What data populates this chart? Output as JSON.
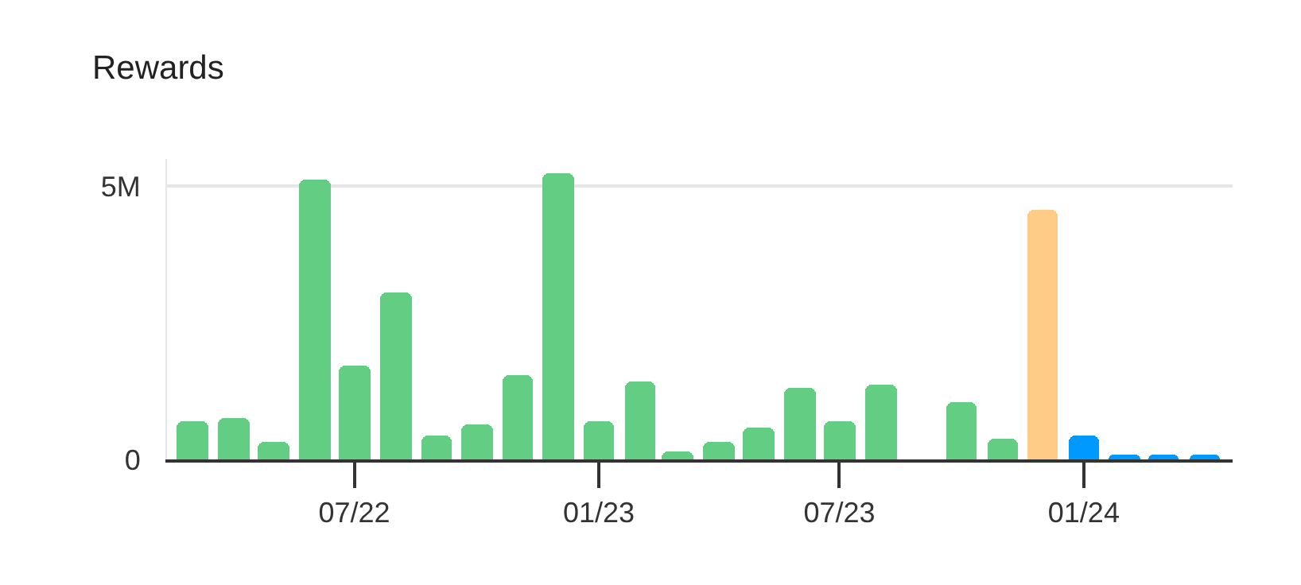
{
  "chart_data": {
    "type": "bar",
    "title": "Rewards",
    "x": [
      "2022-03",
      "2022-04",
      "2022-05",
      "2022-06",
      "2022-07",
      "2022-08",
      "2022-09",
      "2022-10",
      "2022-11",
      "2022-12",
      "2023-01",
      "2023-02",
      "2023-03",
      "2023-04",
      "2023-05",
      "2023-06",
      "2023-07",
      "2023-08",
      "2023-09",
      "2023-10",
      "2023-11",
      "2023-12",
      "2024-01",
      "2024-02",
      "2024-03",
      "2024-04"
    ],
    "values": [
      700000,
      760000,
      330000,
      5120000,
      1730000,
      3060000,
      450000,
      640000,
      1550000,
      5240000,
      700000,
      1420000,
      150000,
      330000,
      580000,
      1300000,
      700000,
      1360000,
      null,
      1060000,
      390000,
      4580000,
      450000,
      90000,
      90000,
      90000
    ],
    "colors": [
      "#63cd84",
      "#63cd84",
      "#63cd84",
      "#63cd84",
      "#63cd84",
      "#63cd84",
      "#63cd84",
      "#63cd84",
      "#63cd84",
      "#63cd84",
      "#63cd84",
      "#63cd84",
      "#63cd84",
      "#63cd84",
      "#63cd84",
      "#63cd84",
      "#63cd84",
      "#63cd84",
      "#63cd84",
      "#63cd84",
      "#63cd84",
      "#ffcc88",
      "#0099ff",
      "#0099ff",
      "#0099ff",
      "#0099ff"
    ],
    "xlim": [
      "2022-02-10",
      "2024-04-22"
    ],
    "xticks": [
      {
        "value": "2022-07",
        "label": "07/22"
      },
      {
        "value": "2023-01",
        "label": "01/23"
      },
      {
        "value": "2023-07",
        "label": "07/23"
      },
      {
        "value": "2024-01",
        "label": "01/24"
      }
    ],
    "yticks": [
      0,
      {
        "value": 5000000,
        "label": "5M"
      }
    ],
    "ylim": [
      0,
      5500000
    ],
    "grid": "y"
  }
}
